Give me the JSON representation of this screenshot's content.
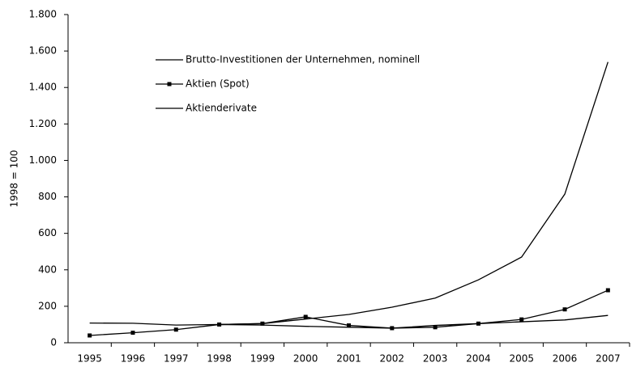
{
  "chart_data": {
    "type": "line",
    "y_label": "1998 = 100",
    "categories": [
      "1995",
      "1996",
      "1997",
      "1998",
      "1999",
      "2000",
      "2001",
      "2002",
      "2003",
      "2004",
      "2005",
      "2006",
      "2007"
    ],
    "series": [
      {
        "name": "Brutto-Investitionen der Unternehmen, nominell",
        "color": "#000000",
        "marker": false,
        "values": [
          108,
          107,
          97,
          100,
          97,
          90,
          85,
          80,
          95,
          105,
          115,
          125,
          150
        ]
      },
      {
        "name": "Aktien (Spot)",
        "color": "#000000",
        "marker": true,
        "values": [
          40,
          55,
          72,
          100,
          105,
          142,
          95,
          80,
          85,
          105,
          128,
          183,
          288
        ]
      },
      {
        "name": "Aktienderivate",
        "color": "#000000",
        "marker": false,
        "values": [
          null,
          null,
          null,
          100,
          105,
          130,
          155,
          195,
          245,
          345,
          470,
          815,
          1540
        ]
      }
    ],
    "ylim": [
      0,
      1800
    ],
    "yticks": [
      0,
      200,
      400,
      600,
      800,
      {
        "value": 1000,
        "label": "1.000"
      },
      {
        "value": 1200,
        "label": "1.200"
      },
      {
        "value": 1400,
        "label": "1.400"
      },
      {
        "value": 1600,
        "label": "1.600"
      },
      {
        "value": 1800,
        "label": "1.800"
      }
    ],
    "grid": false
  }
}
